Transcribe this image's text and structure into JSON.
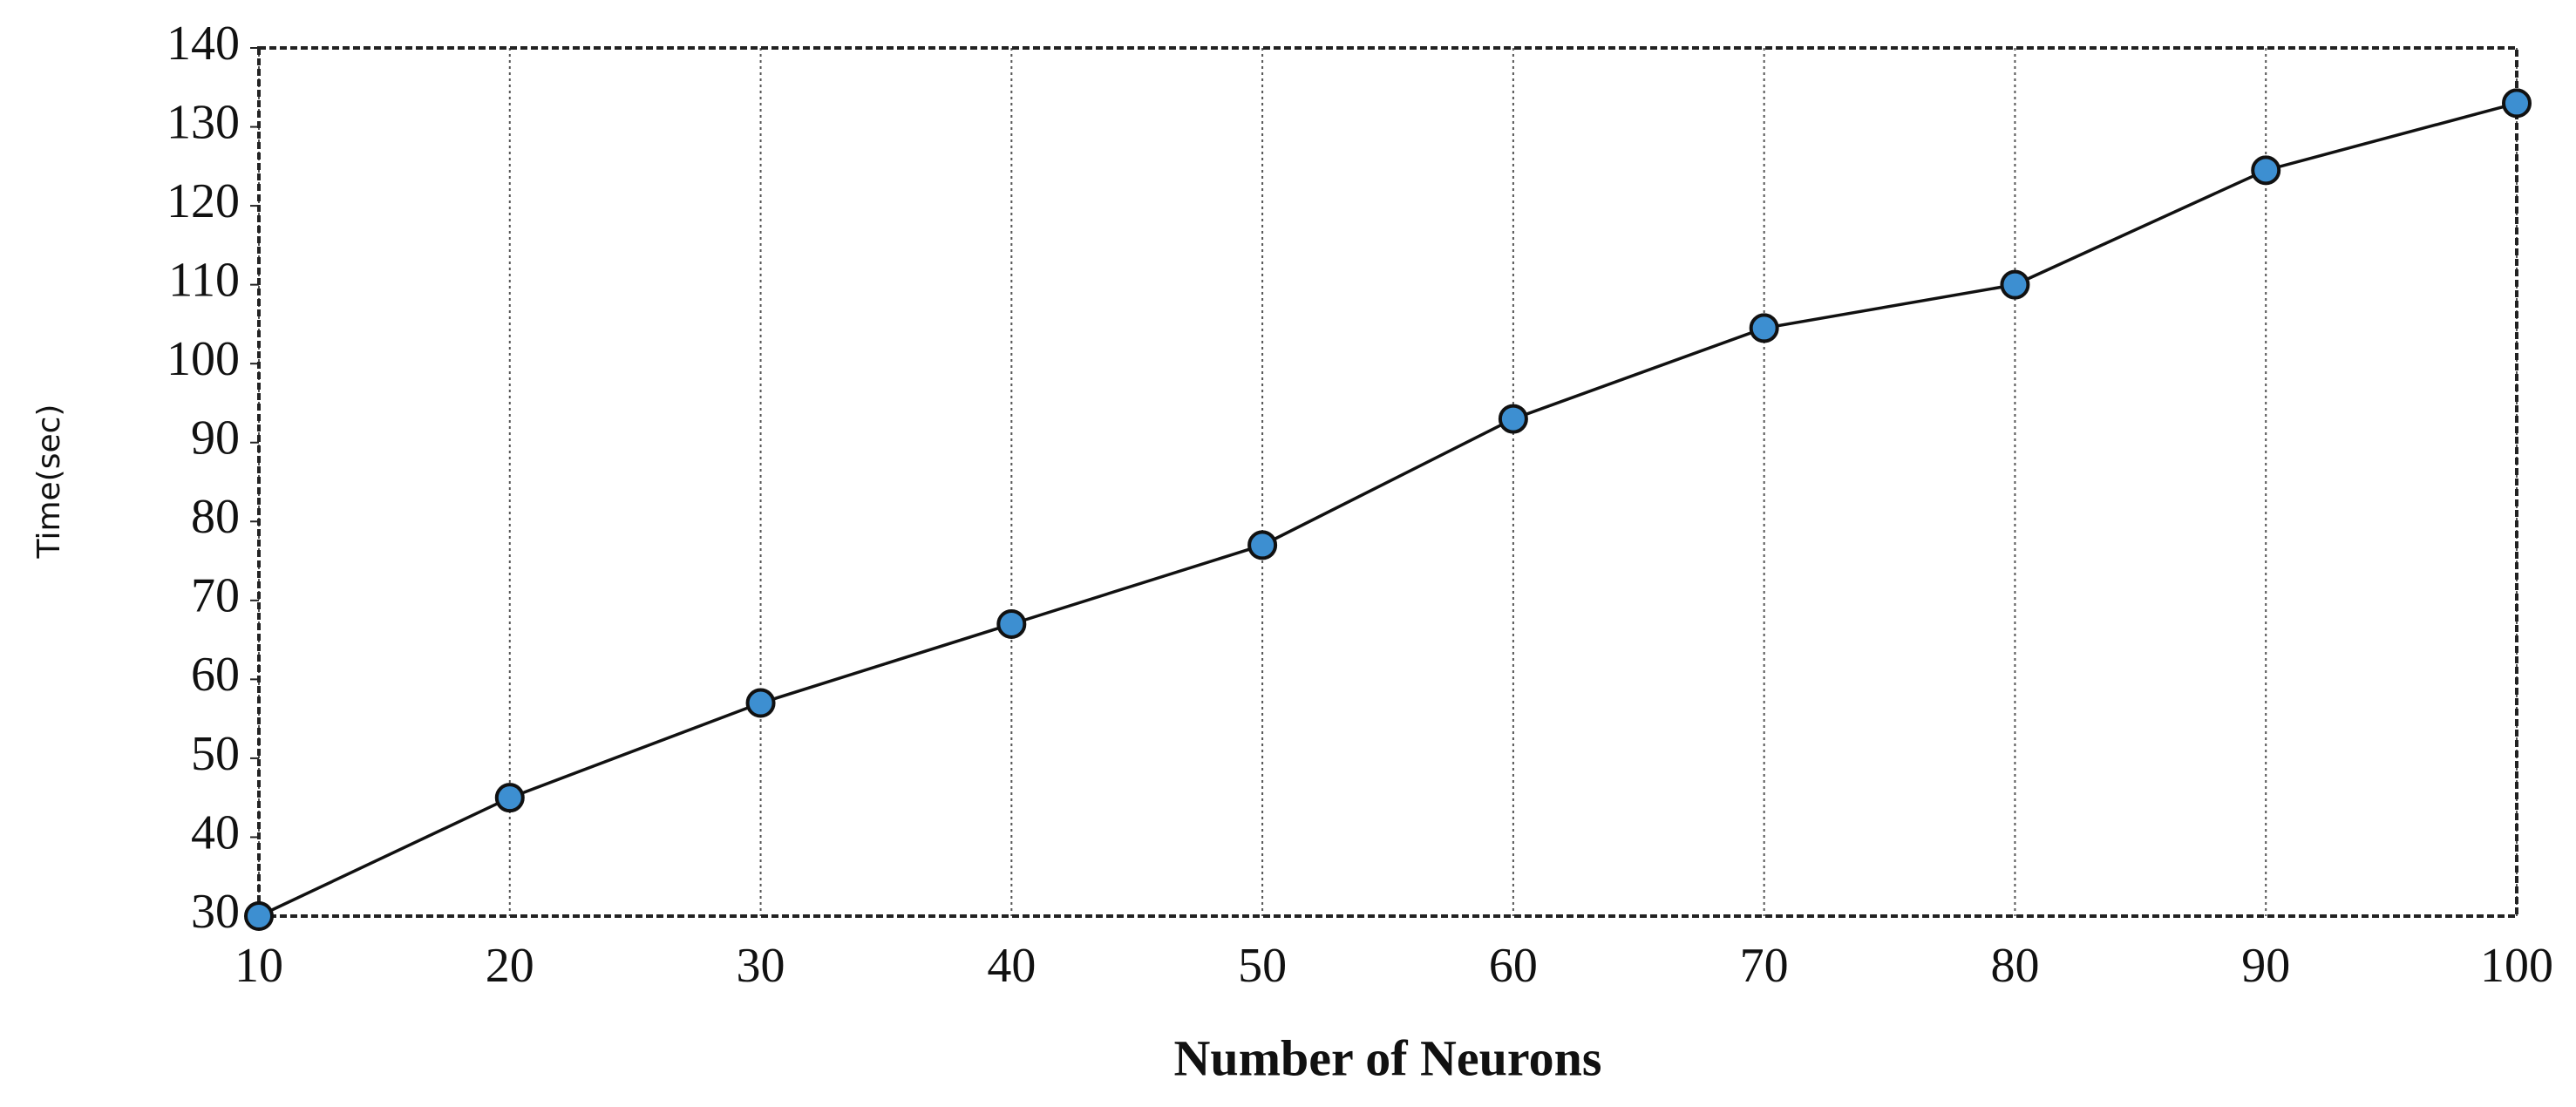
{
  "chart_data": {
    "type": "line",
    "x_label": "Number of Neurons",
    "y_label": "Time(sec)",
    "x": [
      10,
      20,
      30,
      40,
      50,
      60,
      70,
      80,
      90,
      100
    ],
    "values": [
      30,
      45,
      57,
      67,
      77,
      93,
      104.5,
      110,
      124.5,
      133
    ],
    "line_color": "#111111",
    "marker_color": "#3d8fd1",
    "xlim": [
      10,
      100
    ],
    "ylim": [
      30,
      140
    ],
    "xticks": [
      10,
      20,
      30,
      40,
      50,
      60,
      70,
      80,
      90,
      100
    ],
    "yticks": [
      30,
      40,
      50,
      60,
      70,
      80,
      90,
      100,
      110,
      120,
      130,
      140
    ],
    "grid": "x"
  }
}
